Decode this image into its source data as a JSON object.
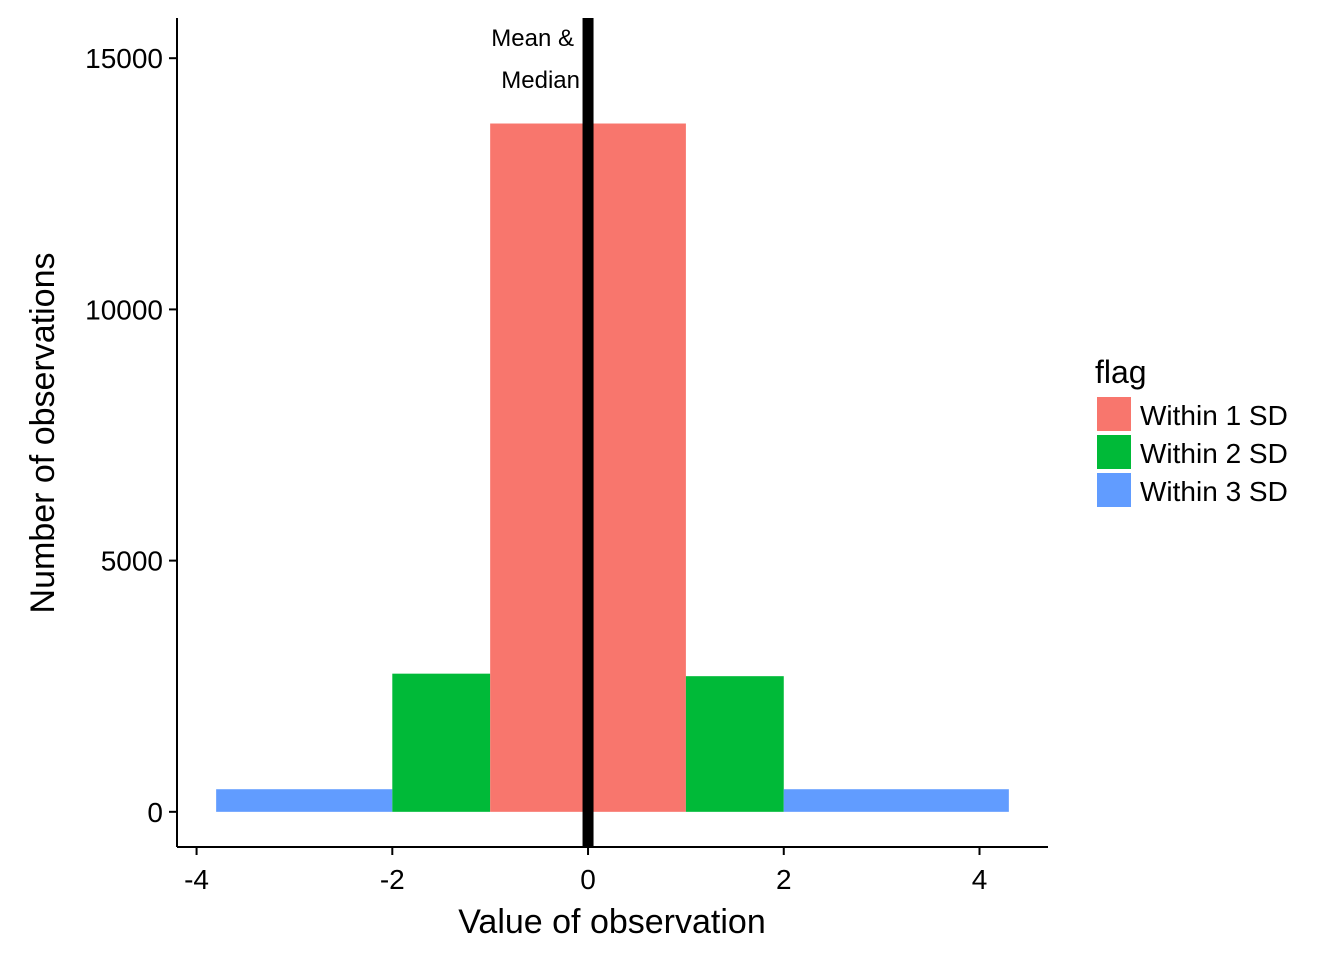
{
  "chart_data": {
    "type": "bar",
    "xlabel": "Value of observation",
    "ylabel": "Number of observations",
    "xlim": [
      -4.2,
      4.7
    ],
    "ylim": [
      -700,
      15800
    ],
    "xticks": [
      -4,
      -2,
      0,
      2,
      4
    ],
    "xtick_labels": [
      "-4",
      "-2",
      "0",
      "2",
      "4"
    ],
    "yticks": [
      0,
      5000,
      10000,
      15000
    ],
    "ytick_labels": [
      "0",
      "5000",
      "10000",
      "15000"
    ],
    "grid": false,
    "legend": {
      "title": "flag",
      "placement": "right",
      "entries": [
        {
          "label": "Within 1 SD",
          "color": "#F8766D"
        },
        {
          "label": "Within 2 SD",
          "color": "#00BA38"
        },
        {
          "label": "Within 3 SD",
          "color": "#619CFF"
        }
      ]
    },
    "bars": [
      {
        "series": "Within 3 SD",
        "x_start": -3.8,
        "x_end": -2,
        "value": 450
      },
      {
        "series": "Within 2 SD",
        "x_start": -2,
        "x_end": -1,
        "value": 2750
      },
      {
        "series": "Within 1 SD",
        "x_start": -1,
        "x_end": 0,
        "value": 13700
      },
      {
        "series": "Within 1 SD",
        "x_start": 0,
        "x_end": 1,
        "value": 13700
      },
      {
        "series": "Within 2 SD",
        "x_start": 1,
        "x_end": 2,
        "value": 2700
      },
      {
        "series": "Within 3 SD",
        "x_start": 2,
        "x_end": 4.3,
        "value": 450
      }
    ],
    "vline": {
      "x": 0,
      "color": "#000000"
    },
    "annotation": {
      "line1": "Mean &",
      "line2": "Median"
    }
  }
}
